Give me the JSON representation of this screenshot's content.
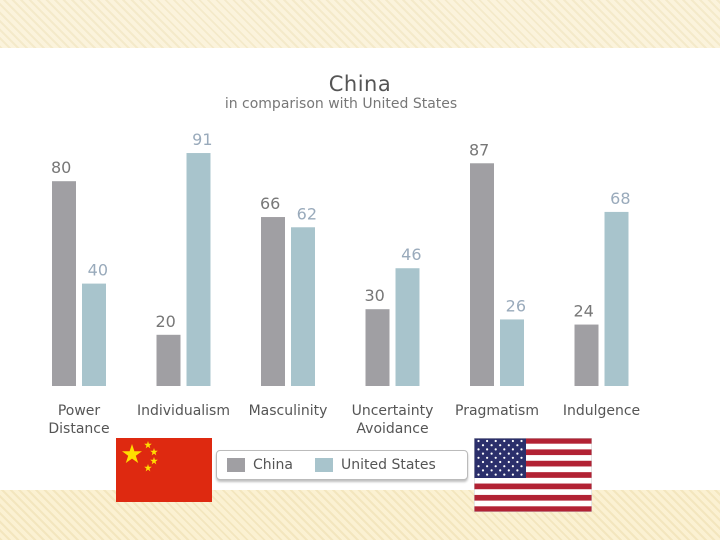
{
  "chart_data": {
    "type": "bar",
    "title": "China",
    "subtitle": "in comparison with United States",
    "categories": [
      "Power\nDistance",
      "Individualism",
      "Masculinity",
      "Uncertainty\nAvoidance",
      "Pragmatism",
      "Indulgence"
    ],
    "series": [
      {
        "name": "China",
        "values": [
          80,
          20,
          66,
          30,
          87,
          24
        ],
        "color": "#a09fa3"
      },
      {
        "name": "United States",
        "values": [
          40,
          91,
          62,
          46,
          26,
          68
        ],
        "color": "#a8c4cc"
      }
    ],
    "ylim": [
      0,
      100
    ],
    "grid": false,
    "legend": "bottom"
  },
  "legend": {
    "china": "China",
    "us": "United States"
  },
  "colors": {
    "china": "#a09fa3",
    "us": "#a8c4cc",
    "label": "#999999",
    "axis_text": "#555555"
  },
  "images": {
    "china_flag": "china-flag-icon",
    "us_flag": "us-flag-icon"
  }
}
